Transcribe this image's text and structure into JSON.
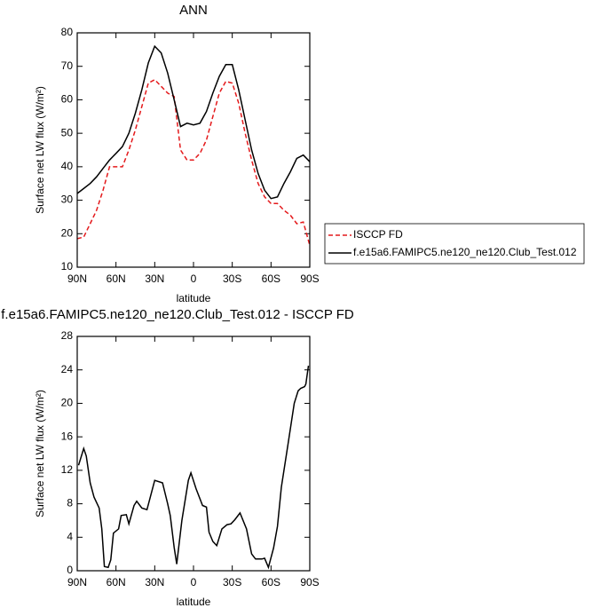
{
  "chart_data": [
    {
      "type": "line",
      "title": "ANN",
      "xlabel": "latitude",
      "ylabel": "Surface net LW flux (W/m²)",
      "x": [
        90,
        85,
        80,
        75,
        70,
        65,
        60,
        55,
        50,
        45,
        40,
        35,
        30,
        25,
        20,
        15,
        10,
        5,
        0,
        -5,
        -10,
        -15,
        -20,
        -25,
        -30,
        -35,
        -40,
        -45,
        -50,
        -55,
        -60,
        -65,
        -70,
        -75,
        -80,
        -85,
        -90
      ],
      "series": [
        {
          "name": "ISCCP FD",
          "color": "#e41a1c",
          "dash": true,
          "values": [
            18.5,
            19,
            23,
            27,
            33,
            40,
            40,
            40,
            45,
            51,
            58,
            65,
            66,
            64,
            62,
            61,
            45,
            42,
            42,
            44,
            48,
            55,
            62,
            65.5,
            65,
            59,
            50,
            42,
            35,
            31,
            29,
            29,
            27,
            25.5,
            23,
            23.5,
            16.5
          ]
        },
        {
          "name": "f.e15a6.FAMIPC5.ne120_ne120.Club_Test.012",
          "color": "#000000",
          "dash": false,
          "values": [
            32,
            33.5,
            35,
            37,
            39.5,
            42,
            44,
            46,
            50,
            56,
            63,
            71,
            76,
            74,
            68,
            60,
            52,
            53,
            52.5,
            53,
            56.5,
            62,
            67,
            70.5,
            70.5,
            63,
            54,
            45,
            38,
            33,
            30.5,
            31,
            35,
            38.5,
            42.5,
            43.5,
            41.5
          ]
        }
      ],
      "xlim": [
        90,
        -90
      ],
      "xticks": [
        {
          "value": 90,
          "label": "90N"
        },
        {
          "value": 60,
          "label": "60N"
        },
        {
          "value": 30,
          "label": "30N"
        },
        0,
        {
          "value": -30,
          "label": "30S"
        },
        {
          "value": -60,
          "label": "60S"
        },
        {
          "value": -90,
          "label": "90S"
        }
      ],
      "ylim": [
        10,
        80
      ],
      "yticks": [
        10,
        20,
        30,
        40,
        50,
        60,
        70,
        80
      ],
      "legend": "right"
    },
    {
      "type": "line",
      "title": "f.e15a6.FAMIPC5.ne120_ne120.Club_Test.012 - ISCCP FD",
      "xlabel": "latitude",
      "ylabel": "Surface net LW flux (W/m²)",
      "x": [
        89,
        85,
        83,
        80,
        77,
        73,
        71,
        69,
        66,
        64,
        62,
        58,
        56,
        52,
        50,
        46,
        44,
        40,
        36,
        30,
        24,
        20,
        18,
        15,
        13,
        9,
        4,
        2,
        -2,
        -7,
        -10,
        -12,
        -15,
        -18,
        -22,
        -26,
        -29,
        -32,
        -36,
        -41,
        -45,
        -48,
        -53,
        -55,
        -58,
        -62,
        -65,
        -68,
        -73,
        -78,
        -81,
        -83,
        -86,
        -87,
        -89
      ],
      "series": [
        {
          "name": null,
          "color": "#000000",
          "dash": false,
          "values": [
            12.6,
            14.6,
            13.7,
            10.5,
            8.8,
            7.5,
            5,
            0.5,
            0.4,
            1.3,
            4.5,
            5,
            6.6,
            6.7,
            5.6,
            7.8,
            8.3,
            7.5,
            7.3,
            10.8,
            10.5,
            8,
            6.6,
            2.8,
            0.8,
            6,
            10.8,
            11.7,
            9.8,
            7.8,
            7.6,
            4.6,
            3.5,
            3,
            5,
            5.5,
            5.6,
            6.1,
            6.9,
            5,
            2,
            1.4,
            1.4,
            1.5,
            0.4,
            2.7,
            5.3,
            10,
            15,
            20,
            21.5,
            21.8,
            22,
            22.3,
            24.5
          ]
        }
      ],
      "xlim": [
        90,
        -90
      ],
      "xticks": [
        {
          "value": 90,
          "label": "90N"
        },
        {
          "value": 60,
          "label": "60N"
        },
        {
          "value": 30,
          "label": "30N"
        },
        0,
        {
          "value": -30,
          "label": "30S"
        },
        {
          "value": -60,
          "label": "60S"
        },
        {
          "value": -90,
          "label": "90S"
        }
      ],
      "ylim": [
        0,
        28
      ],
      "yticks": [
        0,
        4,
        8,
        12,
        16,
        20,
        24,
        28
      ]
    }
  ]
}
